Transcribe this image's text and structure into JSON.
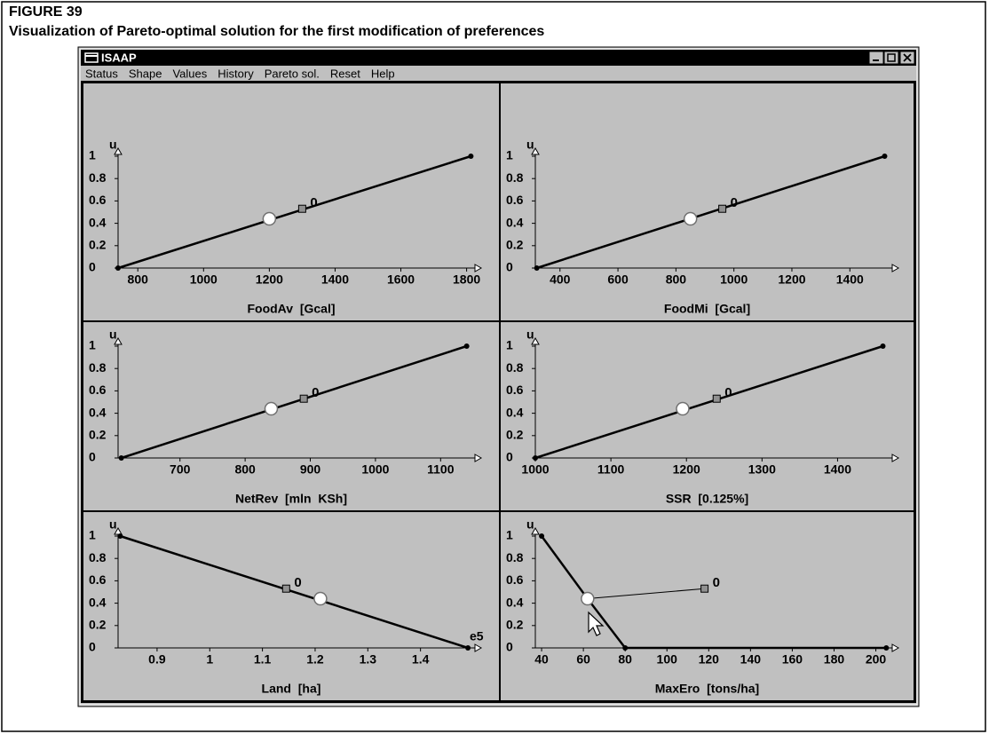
{
  "figure": {
    "label": "FIGURE 39",
    "caption": "Visualization of Pareto-optimal solution for the first modification of preferences"
  },
  "window": {
    "title": "ISAAP",
    "menu": [
      "Status",
      "Shape",
      "Values",
      "History",
      "Pareto sol.",
      "Reset",
      "Help"
    ]
  },
  "chart_data": [
    {
      "type": "line",
      "xlabel": "FoodAv  [Gcal]",
      "ylabel": "u",
      "xlim": [
        740,
        1820
      ],
      "ylim": [
        0,
        1
      ],
      "xticks": [
        800,
        1000,
        1200,
        1400,
        1600,
        1800
      ],
      "yticks": [
        0,
        0.2,
        0.4,
        0.6,
        0.8,
        1
      ],
      "line": {
        "x": [
          740,
          1813
        ],
        "y": [
          0,
          1
        ]
      },
      "current": {
        "x": 1200,
        "y": 0.44
      },
      "reference": {
        "x": 1300,
        "y": 0.53,
        "label": "0"
      }
    },
    {
      "type": "line",
      "xlabel": "FoodMi  [Gcal]",
      "ylabel": "u",
      "xlim": [
        315,
        1540
      ],
      "ylim": [
        0,
        1
      ],
      "xticks": [
        400,
        600,
        800,
        1000,
        1200,
        1400
      ],
      "yticks": [
        0,
        0.2,
        0.4,
        0.6,
        0.8,
        1
      ],
      "line": {
        "x": [
          320,
          1520
        ],
        "y": [
          0,
          1
        ]
      },
      "current": {
        "x": 850,
        "y": 0.44
      },
      "reference": {
        "x": 960,
        "y": 0.53,
        "label": "0"
      }
    },
    {
      "type": "line",
      "xlabel": "NetRev  [mln  KSh]",
      "ylabel": "u",
      "xlim": [
        605,
        1150
      ],
      "ylim": [
        0,
        1
      ],
      "xticks": [
        700,
        800,
        900,
        1000,
        1100
      ],
      "yticks": [
        0,
        0.2,
        0.4,
        0.6,
        0.8,
        1
      ],
      "line": {
        "x": [
          610,
          1140
        ],
        "y": [
          0,
          1
        ]
      },
      "current": {
        "x": 840,
        "y": 0.44
      },
      "reference": {
        "x": 890,
        "y": 0.53,
        "label": "0"
      }
    },
    {
      "type": "line",
      "xlabel": "SSR  [0.125%]",
      "ylabel": "u",
      "xlim": [
        1000,
        1470
      ],
      "ylim": [
        0,
        1
      ],
      "xticks": [
        1000,
        1100,
        1200,
        1300,
        1400
      ],
      "yticks": [
        0,
        0.2,
        0.4,
        0.6,
        0.8,
        1
      ],
      "line": {
        "x": [
          1000,
          1460
        ],
        "y": [
          0,
          1
        ]
      },
      "current": {
        "x": 1195,
        "y": 0.44
      },
      "reference": {
        "x": 1240,
        "y": 0.53,
        "label": "0"
      }
    },
    {
      "type": "line",
      "xlabel": "Land  [ha]",
      "ylabel": "u",
      "annotation": "e5",
      "xlim": [
        0.826,
        1.5
      ],
      "ylim": [
        0,
        1
      ],
      "xticks": [
        0.9,
        1,
        1.1,
        1.2,
        1.3,
        1.4
      ],
      "yticks": [
        0,
        0.2,
        0.4,
        0.6,
        0.8,
        1
      ],
      "line": {
        "x": [
          0.83,
          1.49
        ],
        "y": [
          1,
          0
        ]
      },
      "current": {
        "x": 1.21,
        "y": 0.44
      },
      "reference": {
        "x": 1.145,
        "y": 0.53,
        "label": "0"
      }
    },
    {
      "type": "line",
      "xlabel": "MaxEro  [tons/ha]",
      "ylabel": "u",
      "xlim": [
        37,
        207
      ],
      "ylim": [
        0,
        1
      ],
      "xticks": [
        40,
        60,
        80,
        100,
        120,
        140,
        160,
        180,
        200
      ],
      "yticks": [
        0,
        0.2,
        0.4,
        0.6,
        0.8,
        1
      ],
      "line": {
        "x": [
          40,
          62,
          80,
          205
        ],
        "y": [
          1,
          0.44,
          0,
          0
        ]
      },
      "current": {
        "x": 62,
        "y": 0.44
      },
      "reference": {
        "x": 118,
        "y": 0.53,
        "label": "0"
      },
      "link_reference": true
    }
  ]
}
